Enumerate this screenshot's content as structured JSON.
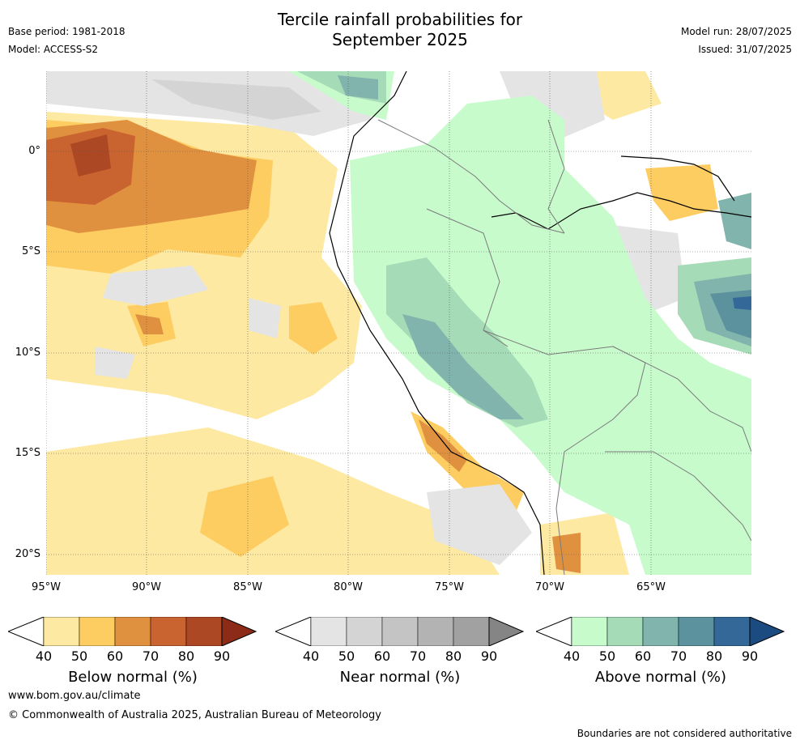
{
  "title_line1": "Tercile rainfall probabilities for",
  "title_line2": "September 2025",
  "base_period": "Base period: 1981-2018",
  "model": "Model: ACCESS-S2",
  "model_run": "Model run: 28/07/2025",
  "issued": "Issued: 31/07/2025",
  "lat_labels": [
    "0°",
    "5°S",
    "10°S",
    "15°S",
    "20°S"
  ],
  "lon_labels": [
    "95°W",
    "90°W",
    "85°W",
    "80°W",
    "75°W",
    "70°W",
    "65°W"
  ],
  "colorbars": [
    {
      "label": "Below normal (%)",
      "ticks": [
        "40",
        "50",
        "60",
        "70",
        "80",
        "90"
      ],
      "colors": [
        "#fde9a2",
        "#fdcd62",
        "#e0913f",
        "#c9632f",
        "#ad4824",
        "#8c2b17"
      ]
    },
    {
      "label": "Near normal (%)",
      "ticks": [
        "40",
        "50",
        "60",
        "70",
        "80",
        "90"
      ],
      "colors": [
        "#e4e4e4",
        "#d4d4d4",
        "#c4c4c4",
        "#b3b3b3",
        "#a1a1a1",
        "#858585"
      ]
    },
    {
      "label": "Above normal (%)",
      "ticks": [
        "40",
        "50",
        "60",
        "70",
        "80",
        "90"
      ],
      "colors": [
        "#c8fbcc",
        "#a5dbb6",
        "#80b4ad",
        "#5b929e",
        "#336899",
        "#1b4b80"
      ]
    }
  ],
  "footer_url": "www.bom.gov.au/climate",
  "footer_copyright": "© Commonwealth of Australia 2025, Australian Bureau of Meteorology",
  "disclaimer": "Boundaries are not considered authoritative"
}
